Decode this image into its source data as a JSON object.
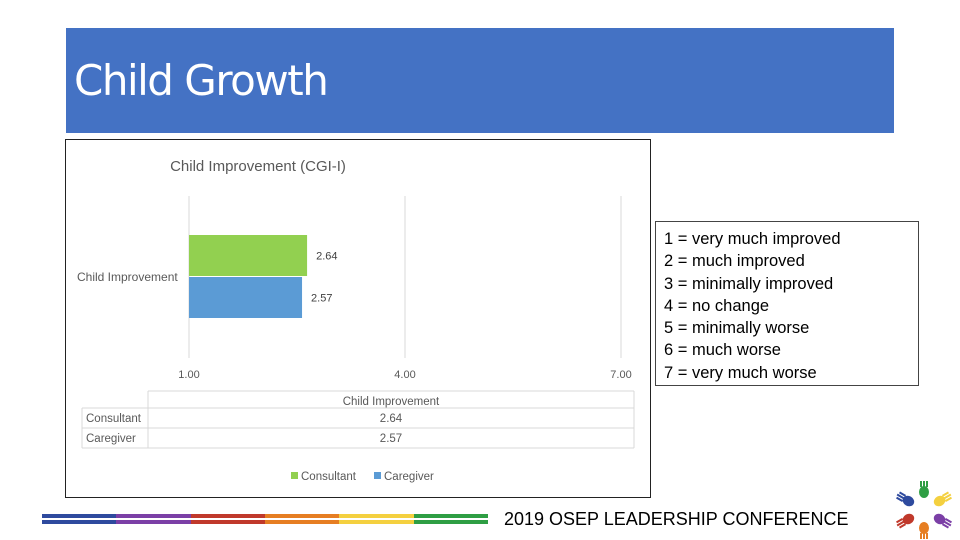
{
  "slide": {
    "title": "Child Growth"
  },
  "chart_data": {
    "type": "bar",
    "orientation": "horizontal",
    "title": "Child Improvement  (CGI-I)",
    "categories": [
      "Child Improvement"
    ],
    "series": [
      {
        "name": "Consultant",
        "values": [
          2.64
        ],
        "color": "#92d050"
      },
      {
        "name": "Caregiver",
        "values": [
          2.57
        ],
        "color": "#5b9bd5"
      }
    ],
    "x_ticks": [
      "1.00",
      "4.00",
      "7.00"
    ],
    "xlim": [
      1,
      7
    ],
    "grid": true,
    "legend_position": "bottom",
    "data_table": {
      "header": "Child Improvement",
      "rows": [
        {
          "label": "Consultant",
          "value": "2.64"
        },
        {
          "label": "Caregiver",
          "value": "2.57"
        }
      ]
    }
  },
  "scale_legend": [
    "1 = very much improved",
    "2 = much improved",
    "3 = minimally improved",
    "4 = no change",
    "5 = minimally worse",
    "6 = much worse",
    "7 = very much worse"
  ],
  "footer": {
    "text": "2019 OSEP LEADERSHIP CONFERENCE",
    "colors": [
      "#2e4a9e",
      "#7b3fa6",
      "#c0392b",
      "#e67e22",
      "#f4d03f",
      "#2e9e44"
    ]
  },
  "logo": {
    "colors": [
      "#2e9e44",
      "#f4d03f",
      "#7b3fa6",
      "#e67e22",
      "#c0392b",
      "#2e4a9e"
    ]
  }
}
